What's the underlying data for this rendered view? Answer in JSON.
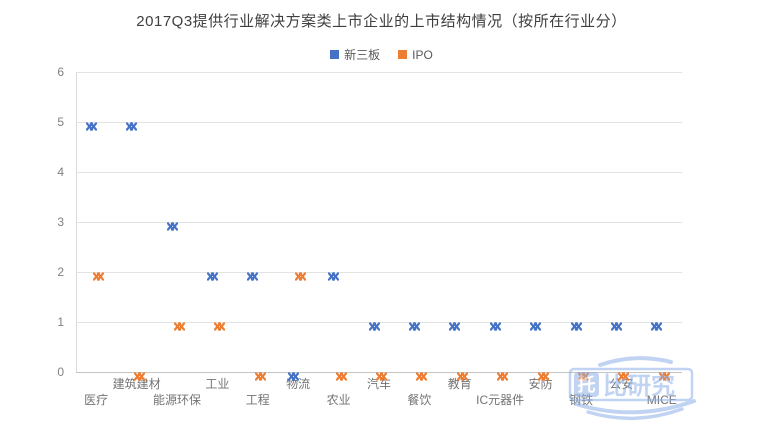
{
  "title": "2017Q3提供行业解决方案类上市企业的上市结构情况（按所在行业分）",
  "watermark": {
    "text": "托比研究",
    "boxed_char": "托",
    "rest_chars": "比研究",
    "color": "#8fb0e8"
  },
  "chart_data": {
    "type": "scatter",
    "title": "2017Q3提供行业解决方案类上市企业的上市结构情况（按所在行业分）",
    "categories": [
      "医疗",
      "建筑建材",
      "能源环保",
      "工业",
      "工程",
      "物流",
      "农业",
      "汽车",
      "餐饮",
      "教育",
      "IC元器件",
      "安防",
      "钢铁",
      "公安",
      "MICE"
    ],
    "series": [
      {
        "name": "新三板",
        "color": "#4472c4",
        "marker": "double-x",
        "values": [
          5,
          5,
          3,
          2,
          2,
          0,
          2,
          1,
          1,
          1,
          1,
          1,
          1,
          1,
          1
        ]
      },
      {
        "name": "IPO",
        "color": "#ed7d31",
        "marker": "double-x",
        "values": [
          2,
          0,
          1,
          1,
          0,
          2,
          0,
          0,
          0,
          0,
          0,
          0,
          0,
          0,
          0
        ]
      }
    ],
    "ylim": [
      0,
      6
    ],
    "yticks": [
      0,
      1,
      2,
      3,
      4,
      5,
      6
    ],
    "grid": true,
    "legend_position": "top",
    "colors": {
      "grid": "#e3e3e3",
      "axis": "#c4c4c4",
      "tick_label": "#808080",
      "title": "#3f3f3f"
    }
  }
}
